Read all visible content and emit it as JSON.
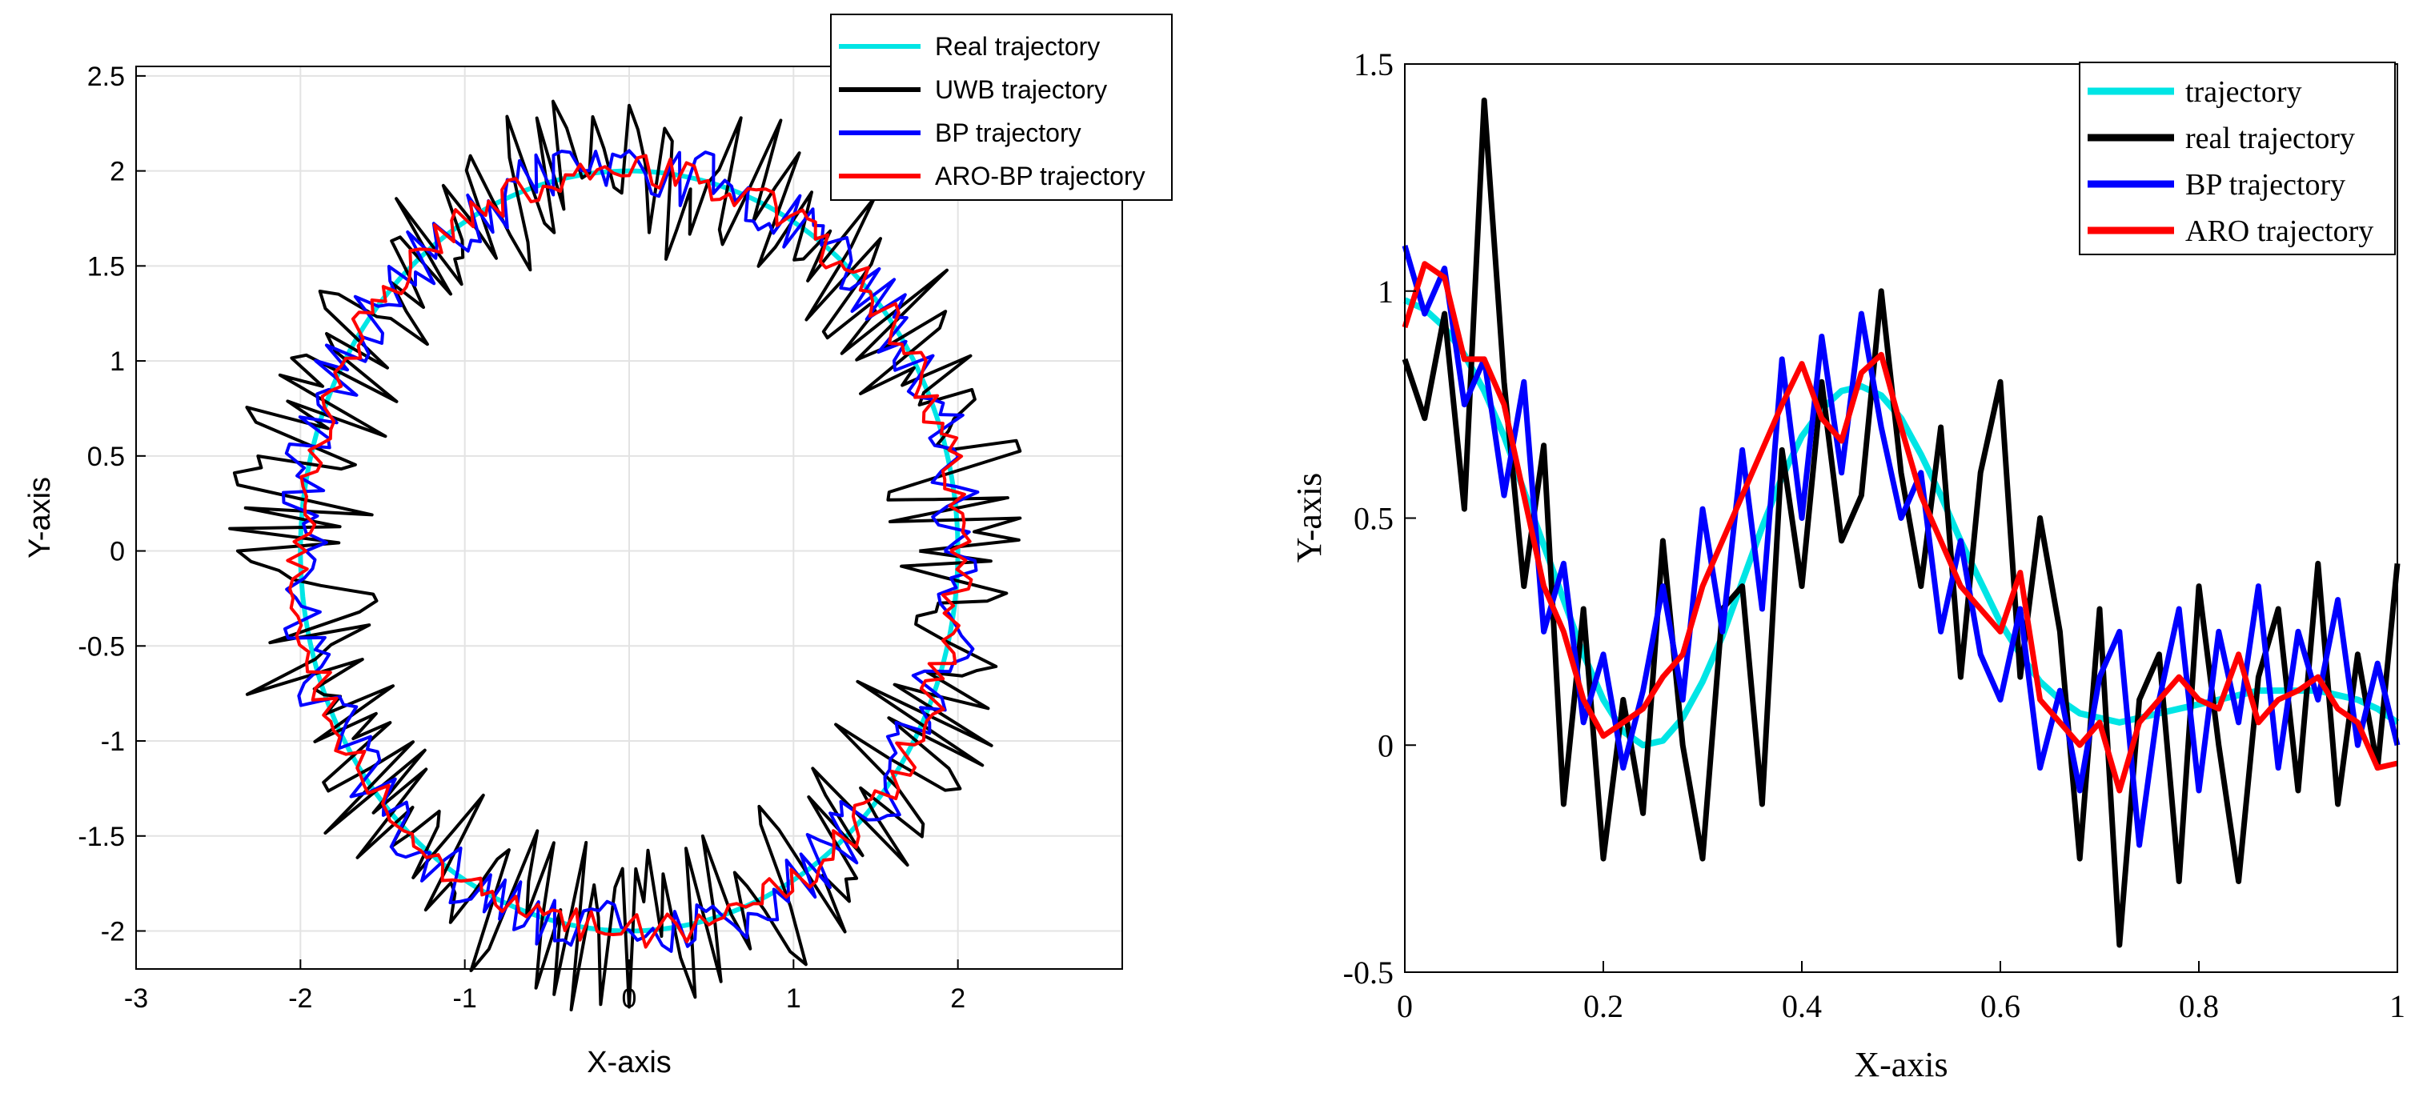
{
  "chart_data": [
    {
      "type": "line",
      "xlabel": "X-axis",
      "ylabel": "Y-axis",
      "xlim": [
        -3,
        3
      ],
      "ylim": [
        -2.2,
        2.55
      ],
      "xticks": [
        -3,
        -2,
        -1,
        0,
        1,
        2
      ],
      "yticks": [
        -2,
        -1.5,
        -1,
        -0.5,
        0,
        0.5,
        1,
        1.5,
        2,
        2.5
      ],
      "xtick_labels": [
        "-3",
        "-2",
        "-1",
        "0",
        "1",
        "2"
      ],
      "ytick_labels": [
        "-2",
        "-1.5",
        "-1",
        "-0.5",
        "0",
        "0.5",
        "1",
        "1.5",
        "2",
        "2.5"
      ],
      "grid": true,
      "legend_position": "top-right",
      "shape": "circle",
      "radius": 2,
      "samples": 260,
      "series": [
        {
          "name": "Real trajectory",
          "color": "#00e5e5",
          "noise": 0.0,
          "seed": 1
        },
        {
          "name": "UWB trajectory",
          "color": "#000000",
          "noise": 0.45,
          "seed": 7
        },
        {
          "name": "BP trajectory",
          "color": "#0000ff",
          "noise": 0.16,
          "seed": 13
        },
        {
          "name": "ARO-BP trajectory",
          "color": "#ff0000",
          "noise": 0.09,
          "seed": 29
        }
      ]
    },
    {
      "type": "line",
      "xlabel": "X-axis",
      "ylabel": "Y-axis",
      "xlim": [
        0,
        1
      ],
      "ylim": [
        -0.5,
        1.5
      ],
      "xticks": [
        0,
        0.2,
        0.4,
        0.6,
        0.8,
        1
      ],
      "yticks": [
        -0.5,
        0,
        0.5,
        1,
        1.5
      ],
      "xtick_labels": [
        "0",
        "0.2",
        "0.4",
        "0.6",
        "0.8",
        "1"
      ],
      "ytick_labels": [
        "-0.5",
        "0",
        "0.5",
        "1",
        "1.5"
      ],
      "grid": false,
      "legend_position": "top-right",
      "x": [
        0,
        0.02,
        0.04,
        0.06,
        0.08,
        0.1,
        0.12,
        0.14,
        0.16,
        0.18,
        0.2,
        0.22,
        0.24,
        0.26,
        0.28,
        0.3,
        0.32,
        0.34,
        0.36,
        0.38,
        0.4,
        0.42,
        0.44,
        0.46,
        0.48,
        0.5,
        0.52,
        0.54,
        0.56,
        0.58,
        0.6,
        0.62,
        0.64,
        0.66,
        0.68,
        0.7,
        0.72,
        0.74,
        0.76,
        0.78,
        0.8,
        0.82,
        0.84,
        0.86,
        0.88,
        0.9,
        0.92,
        0.94,
        0.96,
        0.98,
        1
      ],
      "series": [
        {
          "name": "trajectory",
          "color": "#00e5e5",
          "values": [
            0.98,
            0.96,
            0.92,
            0.86,
            0.78,
            0.68,
            0.56,
            0.44,
            0.32,
            0.2,
            0.1,
            0.03,
            0.0,
            0.01,
            0.06,
            0.14,
            0.24,
            0.36,
            0.48,
            0.59,
            0.68,
            0.74,
            0.78,
            0.79,
            0.77,
            0.72,
            0.64,
            0.55,
            0.45,
            0.36,
            0.27,
            0.2,
            0.14,
            0.1,
            0.07,
            0.06,
            0.05,
            0.06,
            0.07,
            0.08,
            0.09,
            0.1,
            0.11,
            0.12,
            0.12,
            0.12,
            0.12,
            0.11,
            0.1,
            0.08,
            0.05
          ]
        },
        {
          "name": "real trajectory",
          "color": "#000000",
          "values": [
            0.85,
            0.72,
            0.95,
            0.52,
            1.42,
            0.8,
            0.35,
            0.66,
            -0.13,
            0.3,
            -0.25,
            0.1,
            -0.15,
            0.45,
            0.0,
            -0.25,
            0.3,
            0.35,
            -0.13,
            0.65,
            0.35,
            0.8,
            0.45,
            0.55,
            1.0,
            0.6,
            0.35,
            0.7,
            0.15,
            0.6,
            0.8,
            0.15,
            0.5,
            0.25,
            -0.25,
            0.3,
            -0.44,
            0.1,
            0.2,
            -0.3,
            0.35,
            0.0,
            -0.3,
            0.15,
            0.3,
            -0.1,
            0.4,
            -0.13,
            0.2,
            -0.05,
            0.4
          ]
        },
        {
          "name": "BP trajectory",
          "color": "#0000ff",
          "values": [
            1.1,
            0.95,
            1.05,
            0.75,
            0.85,
            0.55,
            0.8,
            0.25,
            0.4,
            0.05,
            0.2,
            -0.05,
            0.12,
            0.35,
            0.1,
            0.52,
            0.25,
            0.65,
            0.3,
            0.85,
            0.5,
            0.9,
            0.6,
            0.95,
            0.7,
            0.5,
            0.6,
            0.25,
            0.45,
            0.2,
            0.1,
            0.3,
            -0.05,
            0.12,
            -0.1,
            0.15,
            0.25,
            -0.22,
            0.1,
            0.3,
            -0.1,
            0.25,
            0.05,
            0.35,
            -0.05,
            0.25,
            0.1,
            0.32,
            0.0,
            0.18,
            0.0
          ]
        },
        {
          "name": "ARO trajectory",
          "color": "#ff0000",
          "values": [
            0.92,
            1.06,
            1.03,
            0.85,
            0.85,
            0.75,
            0.55,
            0.35,
            0.25,
            0.1,
            0.02,
            0.05,
            0.08,
            0.15,
            0.2,
            0.35,
            0.45,
            0.55,
            0.65,
            0.75,
            0.84,
            0.72,
            0.67,
            0.82,
            0.86,
            0.7,
            0.55,
            0.45,
            0.35,
            0.3,
            0.25,
            0.38,
            0.1,
            0.05,
            0.0,
            0.05,
            -0.1,
            0.05,
            0.1,
            0.15,
            0.1,
            0.08,
            0.2,
            0.05,
            0.1,
            0.12,
            0.15,
            0.08,
            0.05,
            -0.05,
            -0.04
          ]
        }
      ]
    }
  ]
}
